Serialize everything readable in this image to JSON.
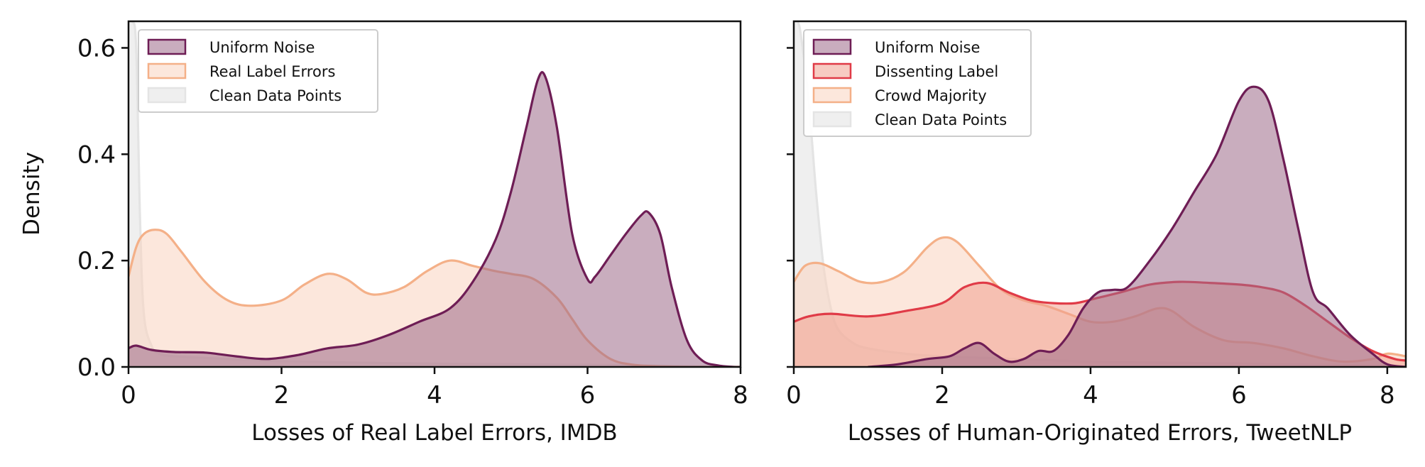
{
  "chart_data": [
    {
      "type": "area",
      "xlabel": "Losses of Real Label Errors, IMDB",
      "ylabel": "Density",
      "xlim": [
        0,
        8
      ],
      "ylim": [
        0,
        0.65
      ],
      "xticks": [
        "0",
        "2",
        "4",
        "6",
        "8"
      ],
      "yticks": [
        "0.0",
        "0.2",
        "0.4",
        "0.6"
      ],
      "legend_position": "top-left",
      "series": [
        {
          "name": "Uniform Noise",
          "line_color": "#6e1d55",
          "fill_color": "#9c6a88",
          "fill_opacity": 0.55,
          "x": [
            0,
            0.1,
            0.3,
            0.6,
            1.0,
            1.4,
            1.8,
            2.2,
            2.6,
            3.0,
            3.4,
            3.8,
            4.2,
            4.5,
            4.8,
            5.0,
            5.2,
            5.35,
            5.45,
            5.6,
            5.8,
            6.0,
            6.1,
            6.3,
            6.5,
            6.7,
            6.8,
            6.95,
            7.1,
            7.3,
            7.5,
            7.7,
            7.9,
            8.0
          ],
          "y": [
            0.035,
            0.04,
            0.032,
            0.028,
            0.027,
            0.02,
            0.015,
            0.022,
            0.035,
            0.042,
            0.06,
            0.085,
            0.11,
            0.16,
            0.24,
            0.33,
            0.45,
            0.54,
            0.545,
            0.45,
            0.25,
            0.165,
            0.17,
            0.21,
            0.25,
            0.285,
            0.29,
            0.25,
            0.15,
            0.05,
            0.012,
            0.003,
            0.0,
            0.0
          ]
        },
        {
          "name": "Real Label Errors",
          "line_color": "#f4b088",
          "fill_color": "#fad4bf",
          "fill_opacity": 0.55,
          "x": [
            0,
            0.1,
            0.2,
            0.35,
            0.5,
            0.7,
            1.0,
            1.3,
            1.6,
            2.0,
            2.3,
            2.6,
            2.85,
            3.1,
            3.3,
            3.6,
            3.9,
            4.2,
            4.5,
            4.8,
            5.0,
            5.3,
            5.6,
            5.8,
            6.0,
            6.3,
            6.6,
            7.0,
            7.5,
            8.0
          ],
          "y": [
            0.17,
            0.225,
            0.25,
            0.258,
            0.25,
            0.215,
            0.16,
            0.125,
            0.115,
            0.125,
            0.155,
            0.175,
            0.165,
            0.14,
            0.137,
            0.15,
            0.18,
            0.2,
            0.19,
            0.18,
            0.175,
            0.165,
            0.13,
            0.09,
            0.05,
            0.015,
            0.004,
            0.001,
            0.0,
            0.0
          ]
        },
        {
          "name": "Clean Data Points",
          "line_color": "#e4e4e4",
          "fill_color": "#ebebeb",
          "fill_opacity": 0.8,
          "x": [
            0,
            0.05,
            0.1,
            0.15,
            0.2,
            0.3,
            0.4,
            0.6,
            1.0,
            1.5,
            2.0,
            3.0,
            4.0,
            5.0,
            6.0,
            7.0,
            8.0
          ],
          "y": [
            0.65,
            0.65,
            0.6,
            0.28,
            0.1,
            0.04,
            0.025,
            0.02,
            0.017,
            0.014,
            0.011,
            0.008,
            0.006,
            0.005,
            0.004,
            0.002,
            0.0
          ]
        }
      ]
    },
    {
      "type": "area",
      "xlabel": "Losses of Human-Originated Errors, TweetNLP",
      "ylabel": "",
      "xlim": [
        0,
        8.25
      ],
      "ylim": [
        0,
        0.65
      ],
      "xticks": [
        "0",
        "2",
        "4",
        "6",
        "8"
      ],
      "yticks": [],
      "legend_position": "top-left",
      "series": [
        {
          "name": "Uniform Noise",
          "line_color": "#6e1d55",
          "fill_color": "#9c6a88",
          "fill_opacity": 0.55,
          "x": [
            1.0,
            1.4,
            1.8,
            2.1,
            2.3,
            2.5,
            2.7,
            2.9,
            3.1,
            3.3,
            3.5,
            3.7,
            3.9,
            4.1,
            4.3,
            4.5,
            4.8,
            5.1,
            5.4,
            5.7,
            6.0,
            6.2,
            6.4,
            6.6,
            6.8,
            7.0,
            7.2,
            7.5,
            7.8,
            8.0,
            8.25
          ],
          "y": [
            0.0,
            0.005,
            0.015,
            0.02,
            0.035,
            0.045,
            0.025,
            0.01,
            0.015,
            0.03,
            0.03,
            0.06,
            0.11,
            0.14,
            0.145,
            0.15,
            0.2,
            0.26,
            0.33,
            0.4,
            0.5,
            0.527,
            0.5,
            0.39,
            0.26,
            0.14,
            0.11,
            0.06,
            0.025,
            0.005,
            0.0
          ]
        },
        {
          "name": "Dissenting Label",
          "line_color": "#e03b47",
          "fill_color": "#f0a090",
          "fill_opacity": 0.55,
          "x": [
            0,
            0.2,
            0.5,
            1.0,
            1.5,
            2.0,
            2.3,
            2.6,
            2.9,
            3.2,
            3.5,
            3.8,
            4.1,
            4.4,
            4.8,
            5.2,
            5.6,
            6.0,
            6.3,
            6.6,
            6.9,
            7.2,
            7.5,
            7.8,
            8.1,
            8.25
          ],
          "y": [
            0.085,
            0.095,
            0.1,
            0.095,
            0.105,
            0.12,
            0.15,
            0.158,
            0.14,
            0.125,
            0.12,
            0.12,
            0.13,
            0.14,
            0.155,
            0.16,
            0.158,
            0.155,
            0.15,
            0.14,
            0.115,
            0.085,
            0.055,
            0.03,
            0.015,
            0.012
          ]
        },
        {
          "name": "Crowd Majority",
          "line_color": "#f4b088",
          "fill_color": "#fad4bf",
          "fill_opacity": 0.55,
          "x": [
            0,
            0.15,
            0.35,
            0.6,
            0.9,
            1.2,
            1.5,
            1.8,
            2.0,
            2.2,
            2.5,
            2.8,
            3.1,
            3.4,
            3.7,
            4.0,
            4.3,
            4.6,
            4.9,
            5.1,
            5.4,
            5.8,
            6.2,
            6.6,
            7.0,
            7.4,
            7.8,
            8.0,
            8.25
          ],
          "y": [
            0.16,
            0.19,
            0.195,
            0.18,
            0.16,
            0.16,
            0.18,
            0.225,
            0.243,
            0.235,
            0.19,
            0.145,
            0.125,
            0.115,
            0.1,
            0.085,
            0.085,
            0.095,
            0.11,
            0.105,
            0.075,
            0.05,
            0.045,
            0.035,
            0.02,
            0.01,
            0.015,
            0.025,
            0.02
          ]
        },
        {
          "name": "Clean Data Points",
          "line_color": "#e4e4e4",
          "fill_color": "#ebebeb",
          "fill_opacity": 0.8,
          "x": [
            0,
            0.05,
            0.1,
            0.2,
            0.3,
            0.4,
            0.5,
            0.6,
            0.8,
            1.0,
            1.5,
            2.0,
            3.0,
            4.0,
            5.0,
            6.0,
            7.0,
            8.0,
            8.25
          ],
          "y": [
            0.65,
            0.65,
            0.62,
            0.5,
            0.33,
            0.19,
            0.11,
            0.07,
            0.045,
            0.035,
            0.025,
            0.02,
            0.015,
            0.01,
            0.008,
            0.006,
            0.004,
            0.002,
            0.0
          ]
        }
      ]
    }
  ]
}
